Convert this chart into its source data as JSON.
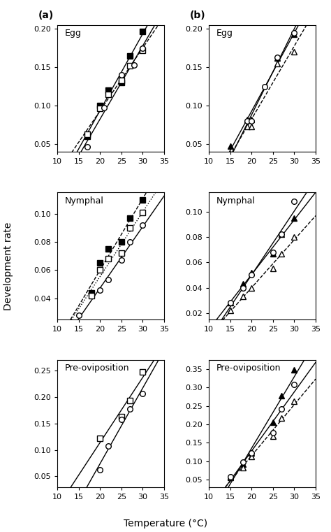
{
  "panels": [
    {
      "label": "(a)",
      "col": 0,
      "row": 0,
      "title": "Egg",
      "ylim": [
        0.04,
        0.205
      ],
      "yticks": [
        0.05,
        0.1,
        0.15,
        0.2
      ],
      "series": [
        {
          "x": [
            17,
            20,
            22,
            25,
            27,
            30
          ],
          "y": [
            0.06,
            0.1,
            0.12,
            0.13,
            0.165,
            0.197
          ],
          "marker": "s",
          "filled": true,
          "line_style": "solid"
        },
        {
          "x": [
            17,
            20,
            22,
            25,
            27,
            30
          ],
          "y": [
            0.063,
            0.097,
            0.115,
            0.133,
            0.152,
            0.172
          ],
          "marker": "s",
          "filled": false,
          "line_style": "dashed"
        },
        {
          "x": [
            17,
            21,
            25,
            28,
            30
          ],
          "y": [
            0.047,
            0.098,
            0.14,
            0.153,
            0.175
          ],
          "marker": "o",
          "filled": false,
          "line_style": "solid"
        }
      ]
    },
    {
      "label": "(b)",
      "col": 1,
      "row": 0,
      "title": "Egg",
      "ylim": [
        0.04,
        0.205
      ],
      "yticks": [
        0.05,
        0.1,
        0.15,
        0.2
      ],
      "series": [
        {
          "x": [
            15,
            19,
            20,
            26,
            30
          ],
          "y": [
            0.048,
            0.082,
            0.082,
            0.162,
            0.193
          ],
          "marker": "^",
          "filled": true,
          "line_style": "solid"
        },
        {
          "x": [
            15,
            19,
            20,
            26,
            30
          ],
          "y": [
            0.038,
            0.073,
            0.073,
            0.155,
            0.17
          ],
          "marker": "^",
          "filled": false,
          "line_style": "dashed"
        },
        {
          "x": [
            19,
            20,
            23,
            26,
            30
          ],
          "y": [
            0.08,
            0.08,
            0.125,
            0.163,
            0.195
          ],
          "marker": "o",
          "filled": false,
          "line_style": "solid"
        }
      ]
    },
    {
      "label": "",
      "col": 0,
      "row": 1,
      "title": "Nymphal",
      "ylim": [
        0.025,
        0.115
      ],
      "yticks": [
        0.04,
        0.06,
        0.08,
        0.1
      ],
      "series": [
        {
          "x": [
            18,
            20,
            22,
            25,
            27,
            30
          ],
          "y": [
            0.044,
            0.065,
            0.075,
            0.08,
            0.097,
            0.11
          ],
          "marker": "s",
          "filled": true,
          "line_style": "dashed"
        },
        {
          "x": [
            18,
            20,
            22,
            25,
            27,
            30
          ],
          "y": [
            0.042,
            0.06,
            0.068,
            0.072,
            0.09,
            0.101
          ],
          "marker": "s",
          "filled": false,
          "line_style": "dotted"
        },
        {
          "x": [
            15,
            20,
            22,
            25,
            27,
            30
          ],
          "y": [
            0.028,
            0.046,
            0.053,
            0.067,
            0.08,
            0.092
          ],
          "marker": "o",
          "filled": false,
          "line_style": "solid"
        }
      ]
    },
    {
      "label": "",
      "col": 1,
      "row": 1,
      "title": "Nymphal",
      "ylim": [
        0.015,
        0.115
      ],
      "yticks": [
        0.02,
        0.04,
        0.06,
        0.08,
        0.1
      ],
      "series": [
        {
          "x": [
            15,
            18,
            20,
            25,
            27,
            30
          ],
          "y": [
            0.028,
            0.043,
            0.052,
            0.067,
            0.082,
            0.095
          ],
          "marker": "^",
          "filled": true,
          "line_style": "solid"
        },
        {
          "x": [
            15,
            18,
            20,
            25,
            27,
            30
          ],
          "y": [
            0.022,
            0.033,
            0.04,
            0.055,
            0.067,
            0.08
          ],
          "marker": "^",
          "filled": false,
          "line_style": "dashed"
        },
        {
          "x": [
            15,
            18,
            20,
            25,
            27,
            30
          ],
          "y": [
            0.028,
            0.04,
            0.05,
            0.068,
            0.082,
            0.108
          ],
          "marker": "o",
          "filled": false,
          "line_style": "solid"
        }
      ]
    },
    {
      "label": "",
      "col": 0,
      "row": 2,
      "title": "Pre-oviposition",
      "ylim": [
        0.03,
        0.27
      ],
      "yticks": [
        0.05,
        0.1,
        0.15,
        0.2,
        0.25
      ],
      "series": [
        {
          "x": [
            20,
            25,
            27,
            30
          ],
          "y": [
            0.122,
            0.163,
            0.193,
            0.248
          ],
          "marker": "s",
          "filled": false,
          "line_style": "solid"
        },
        {
          "x": [
            20,
            22,
            25,
            27,
            30
          ],
          "y": [
            0.062,
            0.108,
            0.157,
            0.178,
            0.207
          ],
          "marker": "o",
          "filled": false,
          "line_style": "solid"
        }
      ]
    },
    {
      "label": "",
      "col": 1,
      "row": 2,
      "title": "Pre-oviposition",
      "ylim": [
        0.03,
        0.375
      ],
      "yticks": [
        0.05,
        0.1,
        0.15,
        0.2,
        0.25,
        0.3,
        0.35
      ],
      "series": [
        {
          "x": [
            15,
            18,
            20,
            25,
            27,
            30
          ],
          "y": [
            0.058,
            0.092,
            0.122,
            0.205,
            0.278,
            0.348
          ],
          "marker": "^",
          "filled": true,
          "line_style": "solid"
        },
        {
          "x": [
            15,
            18,
            20,
            25,
            27,
            30
          ],
          "y": [
            0.055,
            0.083,
            0.112,
            0.168,
            0.218,
            0.262
          ],
          "marker": "^",
          "filled": false,
          "line_style": "dashed"
        },
        {
          "x": [
            15,
            18,
            20,
            25,
            27,
            30
          ],
          "y": [
            0.058,
            0.098,
            0.123,
            0.178,
            0.242,
            0.308
          ],
          "marker": "o",
          "filled": false,
          "line_style": "solid"
        }
      ]
    }
  ],
  "xlabel": "Temperature (°C)",
  "ylabel": "Development rate",
  "xlim": [
    10,
    35
  ],
  "xticks": [
    10,
    15,
    20,
    25,
    30,
    35
  ]
}
